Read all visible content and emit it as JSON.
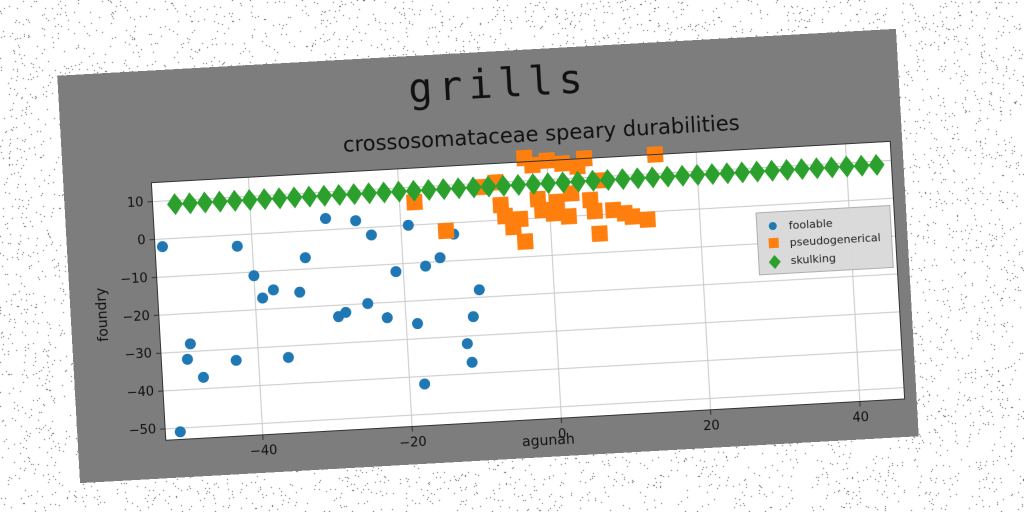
{
  "chart_data": {
    "type": "scatter",
    "suptitle": "grills",
    "title": "crossosomataceae speary durabilities",
    "xlabel": "agunah",
    "ylabel": "foundry",
    "xlim": [
      -53,
      46
    ],
    "ylim": [
      -53,
      15
    ],
    "xticks": [
      -40,
      -20,
      0,
      20,
      40
    ],
    "yticks": [
      10,
      0,
      -10,
      -20,
      -30,
      -40,
      -50
    ],
    "grid": true,
    "legend_position": "right",
    "series": [
      {
        "name": "foolable",
        "marker": "circle",
        "color": "#1f77b4",
        "points": [
          [
            -52,
            -2
          ],
          [
            -49,
            -28
          ],
          [
            -49.5,
            -32
          ],
          [
            -47.5,
            -37
          ],
          [
            -43,
            -33
          ],
          [
            -42,
            -3
          ],
          [
            -40,
            -11
          ],
          [
            -39,
            -17
          ],
          [
            -37.5,
            -15
          ],
          [
            -36,
            -33
          ],
          [
            -34,
            -16
          ],
          [
            -33,
            -7
          ],
          [
            -30,
            3
          ],
          [
            -29,
            -23
          ],
          [
            -28,
            -22
          ],
          [
            -26,
            2
          ],
          [
            -25,
            -20
          ],
          [
            -24,
            -2
          ],
          [
            -22.5,
            -24
          ],
          [
            -21,
            -12
          ],
          [
            -19,
            0
          ],
          [
            -18.5,
            -26
          ],
          [
            -18,
            -42
          ],
          [
            -17,
            -11
          ],
          [
            -15,
            -9
          ],
          [
            -13,
            -3
          ],
          [
            -12,
            -32
          ],
          [
            -11.5,
            -37
          ],
          [
            -11,
            -25
          ],
          [
            -10,
            -18
          ],
          [
            -51,
            -51
          ]
        ]
      },
      {
        "name": "pseudogenerical",
        "marker": "square",
        "color": "#ff7f0e",
        "points": [
          [
            -18,
            6
          ],
          [
            -14,
            -2
          ],
          [
            -9,
            9
          ],
          [
            -7,
            10
          ],
          [
            -6.5,
            4
          ],
          [
            -6,
            1
          ],
          [
            -5,
            -2
          ],
          [
            -4,
            0
          ],
          [
            -3.5,
            -6
          ],
          [
            -3,
            16
          ],
          [
            -2,
            14
          ],
          [
            -1.5,
            5
          ],
          [
            -1,
            2
          ],
          [
            0,
            15
          ],
          [
            0.5,
            1
          ],
          [
            1,
            4
          ],
          [
            2,
            14
          ],
          [
            2.5,
            0
          ],
          [
            3,
            6
          ],
          [
            4,
            13
          ],
          [
            5,
            15
          ],
          [
            5.5,
            4
          ],
          [
            6,
            1
          ],
          [
            6.5,
            -5
          ],
          [
            7,
            9
          ],
          [
            8.5,
            1
          ],
          [
            10,
            0
          ],
          [
            11,
            -1
          ],
          [
            13,
            -2
          ],
          [
            14.5,
            15
          ]
        ]
      },
      {
        "name": "skulking",
        "marker": "diamond",
        "color": "#2ca02c",
        "x_start": -50,
        "x_end": 44,
        "x_step": 2,
        "y": 9
      }
    ]
  }
}
